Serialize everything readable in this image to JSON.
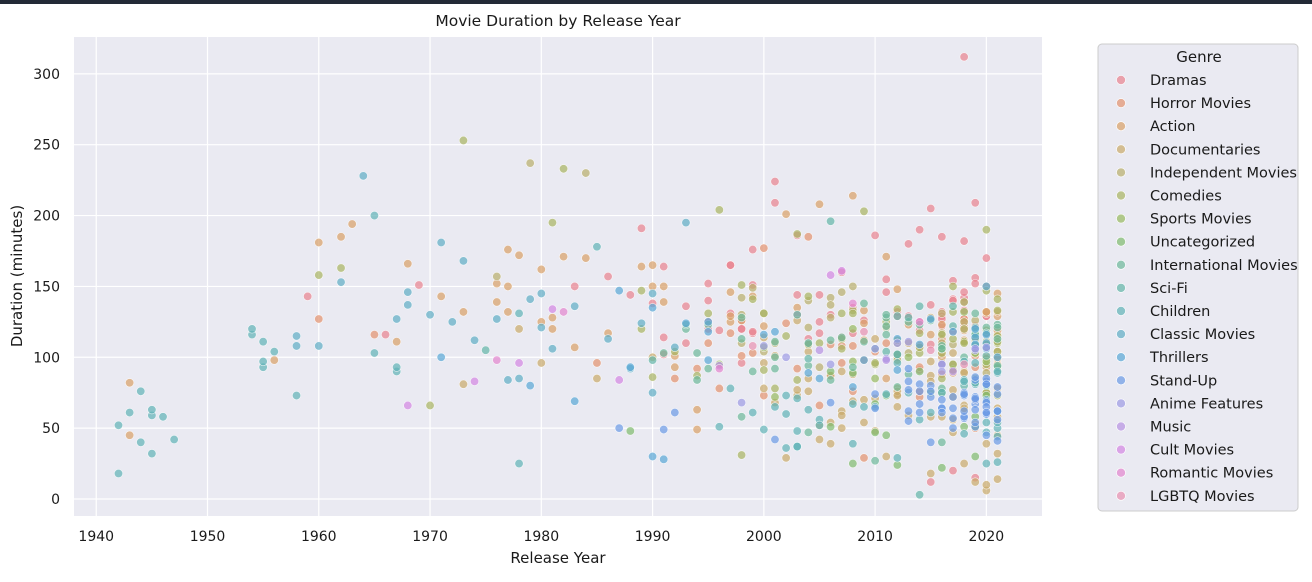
{
  "chart_data": {
    "type": "scatter",
    "title": "Movie Duration by Release Year",
    "xlabel": "Release Year",
    "ylabel": "Duration (minutes)",
    "xlim": [
      1938,
      2025
    ],
    "ylim": [
      -12,
      326
    ],
    "xticks": [
      1940,
      1950,
      1960,
      1970,
      1980,
      1990,
      2000,
      2010,
      2020
    ],
    "yticks": [
      0,
      50,
      100,
      150,
      200,
      250,
      300
    ],
    "grid": true,
    "legend": {
      "title": "Genre",
      "placement": "outside-right"
    },
    "marker_opacity": 0.7,
    "series": [
      {
        "name": "Dramas",
        "color": "#e8828f",
        "points": [
          [
            1959,
            143
          ],
          [
            1966,
            116
          ],
          [
            1969,
            151
          ],
          [
            1983,
            150
          ],
          [
            1986,
            157
          ],
          [
            1989,
            191
          ],
          [
            1991,
            164
          ],
          [
            1993,
            136
          ],
          [
            1995,
            152
          ],
          [
            1997,
            165
          ],
          [
            1999,
            176
          ],
          [
            2001,
            224
          ],
          [
            2001,
            209
          ],
          [
            2003,
            186
          ],
          [
            2007,
            160
          ],
          [
            2010,
            186
          ],
          [
            2013,
            180
          ],
          [
            2014,
            190
          ],
          [
            2015,
            205
          ],
          [
            2016,
            185
          ],
          [
            2018,
            312
          ],
          [
            2019,
            209
          ],
          [
            2015,
            12
          ],
          [
            2017,
            20
          ],
          [
            2019,
            15
          ],
          [
            2018,
            182
          ],
          [
            2020,
            170
          ]
        ],
        "dense": [
          [
            1988,
            2020,
            80,
            175,
            60
          ]
        ]
      },
      {
        "name": "Horror Movies",
        "color": "#e3916d",
        "points": [
          [
            1960,
            127
          ],
          [
            1965,
            116
          ],
          [
            1985,
            96
          ],
          [
            1992,
            85
          ],
          [
            1994,
            92
          ],
          [
            2000,
            177
          ],
          [
            2004,
            185
          ],
          [
            2009,
            29
          ],
          [
            2014,
            72
          ],
          [
            2016,
            88
          ],
          [
            2019,
            50
          ],
          [
            2020,
            100
          ],
          [
            2021,
            93
          ]
        ],
        "dense": [
          [
            1995,
            2021,
            60,
            140,
            35
          ]
        ]
      },
      {
        "name": "Action",
        "color": "#d9a066",
        "points": [
          [
            1943,
            82
          ],
          [
            1943,
            45
          ],
          [
            1956,
            98
          ],
          [
            1960,
            181
          ],
          [
            1962,
            185
          ],
          [
            1963,
            194
          ],
          [
            1967,
            111
          ],
          [
            1968,
            166
          ],
          [
            1971,
            143
          ],
          [
            1973,
            132
          ],
          [
            1977,
            176
          ],
          [
            1978,
            172
          ],
          [
            1980,
            162
          ],
          [
            1982,
            171
          ],
          [
            1984,
            170
          ],
          [
            1989,
            164
          ],
          [
            1990,
            165
          ],
          [
            1994,
            49
          ],
          [
            1994,
            63
          ],
          [
            2002,
            201
          ],
          [
            2005,
            208
          ],
          [
            2008,
            214
          ],
          [
            2011,
            171
          ],
          [
            2020,
            150
          ],
          [
            2021,
            116
          ]
        ],
        "dense": [
          [
            1975,
            2021,
            80,
            170,
            45
          ]
        ]
      },
      {
        "name": "Documentaries",
        "color": "#c9a96a",
        "points": [
          [
            1973,
            81
          ],
          [
            1978,
            120
          ],
          [
            1980,
            96
          ],
          [
            1985,
            85
          ],
          [
            1990,
            100
          ],
          [
            2000,
            96
          ],
          [
            2005,
            52
          ],
          [
            2011,
            30
          ],
          [
            2015,
            18
          ],
          [
            2018,
            25
          ],
          [
            2019,
            12
          ],
          [
            2020,
            6
          ],
          [
            2020,
            10
          ],
          [
            2021,
            32
          ],
          [
            2021,
            14
          ]
        ],
        "dense": [
          [
            2000,
            2021,
            20,
            130,
            70
          ]
        ]
      },
      {
        "name": "Independent Movies",
        "color": "#b8ae6b",
        "points": [
          [
            1976,
            157
          ],
          [
            1979,
            237
          ],
          [
            1984,
            230
          ],
          [
            1998,
            130
          ],
          [
            2008,
            150
          ],
          [
            2012,
            110
          ],
          [
            2018,
            120
          ]
        ],
        "dense": [
          [
            1995,
            2020,
            80,
            160,
            25
          ]
        ]
      },
      {
        "name": "Comedies",
        "color": "#a8b461",
        "points": [
          [
            1960,
            158
          ],
          [
            1962,
            163
          ],
          [
            1970,
            66
          ],
          [
            1973,
            253
          ],
          [
            1981,
            195
          ],
          [
            1982,
            233
          ],
          [
            1996,
            204
          ],
          [
            1998,
            31
          ],
          [
            2003,
            187
          ],
          [
            2009,
            203
          ],
          [
            2017,
            150
          ],
          [
            2020,
            190
          ]
        ],
        "dense": [
          [
            1985,
            2021,
            70,
            160,
            55
          ]
        ]
      },
      {
        "name": "Sports Movies",
        "color": "#97b95f",
        "points": [
          [
            1996,
            95
          ],
          [
            2008,
            120
          ],
          [
            2013,
            100
          ],
          [
            2017,
            95
          ],
          [
            2019,
            85
          ]
        ],
        "dense": [
          [
            1995,
            2020,
            70,
            140,
            10
          ]
        ]
      },
      {
        "name": "Uncategorized",
        "color": "#7fba6d",
        "points": [
          [
            1988,
            48
          ],
          [
            2008,
            25
          ],
          [
            2012,
            24
          ],
          [
            2016,
            22
          ],
          [
            2019,
            30
          ]
        ],
        "dense": [
          [
            2005,
            2021,
            20,
            110,
            15
          ]
        ]
      },
      {
        "name": "International Movies",
        "color": "#6cb89a",
        "points": [
          [
            1998,
            58
          ],
          [
            2004,
            47
          ],
          [
            2010,
            27
          ],
          [
            2016,
            40
          ]
        ],
        "dense": [
          [
            1990,
            2021,
            70,
            150,
            45
          ]
        ]
      },
      {
        "name": "Sci-Fi",
        "color": "#62b5a8",
        "points": [
          [
            1975,
            105
          ],
          [
            1990,
            98
          ],
          [
            2006,
            196
          ],
          [
            2014,
            3
          ],
          [
            2018,
            80
          ]
        ],
        "dense": [
          [
            1995,
            2020,
            80,
            150,
            12
          ]
        ]
      },
      {
        "name": "Children",
        "color": "#60b2b6",
        "points": [
          [
            1942,
            52
          ],
          [
            1942,
            18
          ],
          [
            1943,
            61
          ],
          [
            1944,
            76
          ],
          [
            1944,
            40
          ],
          [
            1945,
            59
          ],
          [
            1945,
            63
          ],
          [
            1945,
            32
          ],
          [
            1946,
            58
          ],
          [
            1947,
            42
          ],
          [
            1954,
            116
          ],
          [
            1954,
            120
          ],
          [
            1955,
            111
          ],
          [
            1955,
            93
          ],
          [
            1955,
            97
          ],
          [
            1956,
            104
          ],
          [
            1958,
            73
          ],
          [
            1965,
            200
          ],
          [
            1965,
            103
          ],
          [
            1967,
            90
          ],
          [
            1967,
            93
          ],
          [
            1978,
            25
          ],
          [
            1978,
            131
          ],
          [
            1985,
            178
          ],
          [
            2002,
            60
          ],
          [
            2003,
            37
          ]
        ],
        "dense": [
          [
            1995,
            2021,
            20,
            110,
            45
          ]
        ]
      },
      {
        "name": "Classic Movies",
        "color": "#5eadc4",
        "points": [
          [
            1958,
            115
          ],
          [
            1958,
            108
          ],
          [
            1960,
            108
          ],
          [
            1962,
            153
          ],
          [
            1964,
            228
          ],
          [
            1967,
            127
          ],
          [
            1968,
            137
          ],
          [
            1968,
            146
          ],
          [
            1970,
            130
          ],
          [
            1971,
            181
          ],
          [
            1972,
            125
          ],
          [
            1973,
            168
          ],
          [
            1974,
            112
          ],
          [
            1976,
            127
          ],
          [
            1977,
            84
          ],
          [
            1978,
            85
          ],
          [
            1979,
            141
          ],
          [
            1980,
            145
          ],
          [
            1980,
            121
          ],
          [
            1981,
            106
          ],
          [
            1983,
            136
          ],
          [
            1986,
            113
          ],
          [
            1988,
            92
          ],
          [
            1989,
            124
          ],
          [
            1990,
            145
          ],
          [
            1990,
            75
          ],
          [
            1992,
            107
          ],
          [
            1993,
            195
          ]
        ],
        "dense": []
      },
      {
        "name": "Thrillers",
        "color": "#58a6d6",
        "points": [
          [
            1971,
            100
          ],
          [
            1979,
            80
          ],
          [
            1983,
            69
          ],
          [
            1990,
            30
          ],
          [
            1991,
            28
          ],
          [
            2005,
            85
          ]
        ],
        "dense": [
          [
            1985,
            2021,
            70,
            160,
            25
          ]
        ]
      },
      {
        "name": "Stand-Up",
        "color": "#6b9ae6",
        "points": [
          [
            1987,
            50
          ],
          [
            1991,
            49
          ],
          [
            1992,
            61
          ],
          [
            2001,
            42
          ],
          [
            2006,
            68
          ]
        ],
        "dense": [
          [
            2010,
            2021,
            35,
            95,
            55
          ]
        ]
      },
      {
        "name": "Anime Features",
        "color": "#9d9ae4",
        "points": [
          [
            1998,
            68
          ],
          [
            2000,
            108
          ],
          [
            2006,
            95
          ],
          [
            2012,
            110
          ],
          [
            2016,
            95
          ],
          [
            2019,
            105
          ]
        ],
        "dense": [
          [
            2000,
            2020,
            85,
            125,
            8
          ]
        ]
      },
      {
        "name": "Music",
        "color": "#b691e3",
        "points": [
          [
            1996,
            94
          ],
          [
            2005,
            105
          ],
          [
            2011,
            98
          ],
          [
            2017,
            90
          ]
        ],
        "dense": []
      },
      {
        "name": "Cult Movies",
        "color": "#d386e3",
        "points": [
          [
            1968,
            66
          ],
          [
            1974,
            83
          ],
          [
            1978,
            96
          ],
          [
            1981,
            134
          ],
          [
            1987,
            84
          ],
          [
            2006,
            158
          ],
          [
            2007,
            161
          ]
        ],
        "dense": []
      },
      {
        "name": "Romantic Movies",
        "color": "#e384cf",
        "points": [
          [
            1976,
            98
          ],
          [
            1982,
            132
          ],
          [
            1996,
            92
          ],
          [
            2008,
            138
          ],
          [
            2014,
            125
          ]
        ],
        "dense": []
      },
      {
        "name": "LGBTQ Movies",
        "color": "#e890b0",
        "points": [
          [
            1999,
            108
          ],
          [
            2009,
            118
          ],
          [
            2015,
            105
          ],
          [
            2018,
            95
          ]
        ],
        "dense": []
      }
    ]
  }
}
